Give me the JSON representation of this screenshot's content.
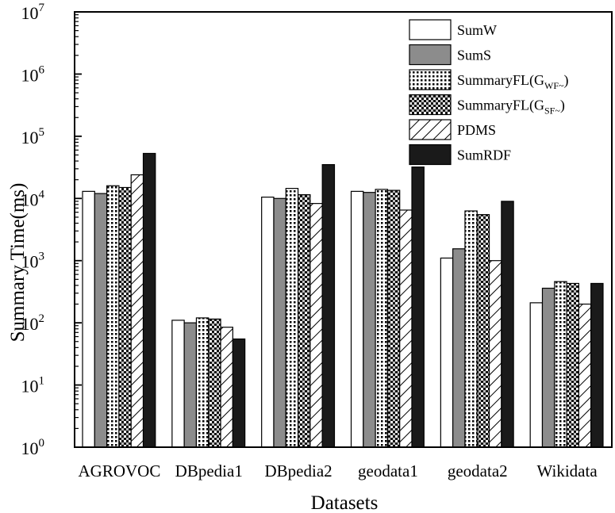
{
  "chart_data": {
    "type": "bar",
    "xlabel": "Datasets",
    "ylabel": "Summary Time(ms)",
    "yscale": "log",
    "ylim": [
      1,
      10000000
    ],
    "grid": false,
    "legend_position": "top-right",
    "categories": [
      "AGROVOC",
      "DBpedia1",
      "DBpedia2",
      "geodata1",
      "geodata2",
      "Wikidata"
    ],
    "y_ticks": [
      {
        "value": 1,
        "base": "10",
        "exp": "0"
      },
      {
        "value": 10,
        "base": "10",
        "exp": "1"
      },
      {
        "value": 100,
        "base": "10",
        "exp": "2"
      },
      {
        "value": 1000,
        "base": "10",
        "exp": "3"
      },
      {
        "value": 10000,
        "base": "10",
        "exp": "4"
      },
      {
        "value": 100000,
        "base": "10",
        "exp": "5"
      },
      {
        "value": 1000000,
        "base": "10",
        "exp": "6"
      },
      {
        "value": 10000000,
        "base": "10",
        "exp": "7"
      }
    ],
    "series": [
      {
        "name": "SumW",
        "name_main": "SumW",
        "name_sub": "",
        "name_tail": "",
        "pattern": "white",
        "values": [
          13000,
          110,
          10500,
          13000,
          1100,
          210
        ]
      },
      {
        "name": "SumS",
        "name_main": "SumS",
        "name_sub": "",
        "name_tail": "",
        "pattern": "gray",
        "values": [
          12000,
          100,
          10000,
          12500,
          1550,
          360
        ]
      },
      {
        "name": "SummaryFL(GWF~)",
        "name_main": "SummaryFL(G",
        "name_sub": "WF~",
        "name_tail": ")",
        "pattern": "dots",
        "values": [
          16000,
          120,
          14500,
          14000,
          6300,
          460
        ]
      },
      {
        "name": "SummaryFL(GSF~)",
        "name_main": "SummaryFL(G",
        "name_sub": "SF~",
        "name_tail": ")",
        "pattern": "checker",
        "values": [
          15000,
          115,
          11500,
          13500,
          5500,
          430
        ]
      },
      {
        "name": "PDMS",
        "name_main": "PDMS",
        "name_sub": "",
        "name_tail": "",
        "pattern": "hatch",
        "values": [
          24000,
          85,
          8300,
          6500,
          1000,
          200
        ]
      },
      {
        "name": "SumRDF",
        "name_main": "SumRDF",
        "name_sub": "",
        "name_tail": "",
        "pattern": "black",
        "values": [
          53000,
          55,
          35000,
          32000,
          9000,
          430
        ]
      }
    ],
    "colors": {
      "gray": "#8c8c8c",
      "black": "#1a1a1a",
      "outline": "#000000"
    }
  }
}
